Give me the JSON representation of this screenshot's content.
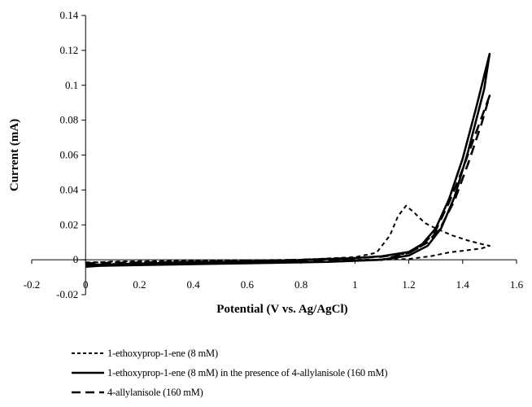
{
  "chart_data": {
    "type": "line",
    "xlabel": "Potential (V vs. Ag/AgCl)",
    "ylabel": "Current (mA)",
    "xlim": [
      -0.2,
      1.6
    ],
    "ylim": [
      -0.02,
      0.14
    ],
    "x_ticks": [
      "-0.2",
      "0",
      "0.2",
      "0.4",
      "0.6",
      "0.8",
      "1",
      "1.2",
      "1.4",
      "1.6"
    ],
    "y_ticks": [
      "-0.02",
      "0",
      "0.02",
      "0.04",
      "0.06",
      "0.08",
      "0.1",
      "0.12",
      "0.14"
    ],
    "grid": false,
    "legend_position": "bottom",
    "series": [
      {
        "name": "1-ethoxyprop-1-ene (8 mM)",
        "style": "short-dash",
        "color": "#000000",
        "points": [
          [
            0,
            -0.0015
          ],
          [
            0.2,
            -0.0012
          ],
          [
            0.4,
            -0.0008
          ],
          [
            0.6,
            -0.0005
          ],
          [
            0.8,
            0.0
          ],
          [
            1.0,
            0.0015
          ],
          [
            1.08,
            0.004
          ],
          [
            1.13,
            0.014
          ],
          [
            1.16,
            0.025
          ],
          [
            1.19,
            0.031
          ],
          [
            1.22,
            0.027
          ],
          [
            1.26,
            0.021
          ],
          [
            1.3,
            0.018
          ],
          [
            1.36,
            0.014
          ],
          [
            1.42,
            0.011
          ],
          [
            1.47,
            0.009
          ],
          [
            1.5,
            0.008
          ],
          [
            1.47,
            0.0065
          ],
          [
            1.42,
            0.0055
          ],
          [
            1.35,
            0.0042
          ],
          [
            1.28,
            0.002
          ],
          [
            1.2,
            0.0005
          ],
          [
            1.1,
            0.0
          ],
          [
            0.8,
            0.0
          ],
          [
            0.4,
            -0.0005
          ],
          [
            0.1,
            -0.001
          ],
          [
            0,
            -0.0018
          ]
        ]
      },
      {
        "name": "1-ethoxyprop-1-ene (8 mM) in the presence of 4-allylanisole (160 mM)",
        "style": "solid",
        "color": "#000000",
        "points": [
          [
            0,
            -0.003
          ],
          [
            0.2,
            -0.0022
          ],
          [
            0.4,
            -0.0015
          ],
          [
            0.6,
            -0.001
          ],
          [
            0.8,
            -0.0002
          ],
          [
            1.0,
            0.001
          ],
          [
            1.1,
            0.002
          ],
          [
            1.2,
            0.0045
          ],
          [
            1.25,
            0.009
          ],
          [
            1.3,
            0.018
          ],
          [
            1.35,
            0.035
          ],
          [
            1.4,
            0.058
          ],
          [
            1.45,
            0.087
          ],
          [
            1.5,
            0.118
          ],
          [
            1.48,
            0.098
          ],
          [
            1.42,
            0.062
          ],
          [
            1.37,
            0.036
          ],
          [
            1.32,
            0.018
          ],
          [
            1.27,
            0.008
          ],
          [
            1.2,
            0.0025
          ],
          [
            1.1,
            0.0
          ],
          [
            0.9,
            -0.0012
          ],
          [
            0.6,
            -0.002
          ],
          [
            0.3,
            -0.0028
          ],
          [
            0.05,
            -0.0035
          ],
          [
            0,
            -0.004
          ]
        ]
      },
      {
        "name": "4-allylanisole (160 mM)",
        "style": "long-dash",
        "color": "#000000",
        "points": [
          [
            0,
            -0.002
          ],
          [
            0.2,
            -0.0016
          ],
          [
            0.4,
            -0.0012
          ],
          [
            0.6,
            -0.0008
          ],
          [
            0.8,
            0.0
          ],
          [
            1.0,
            0.001
          ],
          [
            1.1,
            0.0018
          ],
          [
            1.2,
            0.004
          ],
          [
            1.25,
            0.008
          ],
          [
            1.3,
            0.017
          ],
          [
            1.35,
            0.033
          ],
          [
            1.4,
            0.052
          ],
          [
            1.45,
            0.073
          ],
          [
            1.5,
            0.094
          ],
          [
            1.47,
            0.078
          ],
          [
            1.42,
            0.055
          ],
          [
            1.37,
            0.034
          ],
          [
            1.32,
            0.019
          ],
          [
            1.27,
            0.01
          ],
          [
            1.2,
            0.004
          ],
          [
            1.1,
            0.0
          ],
          [
            0.8,
            -0.001
          ],
          [
            0.4,
            -0.0018
          ],
          [
            0.1,
            -0.0025
          ],
          [
            0,
            -0.003
          ]
        ]
      }
    ]
  }
}
